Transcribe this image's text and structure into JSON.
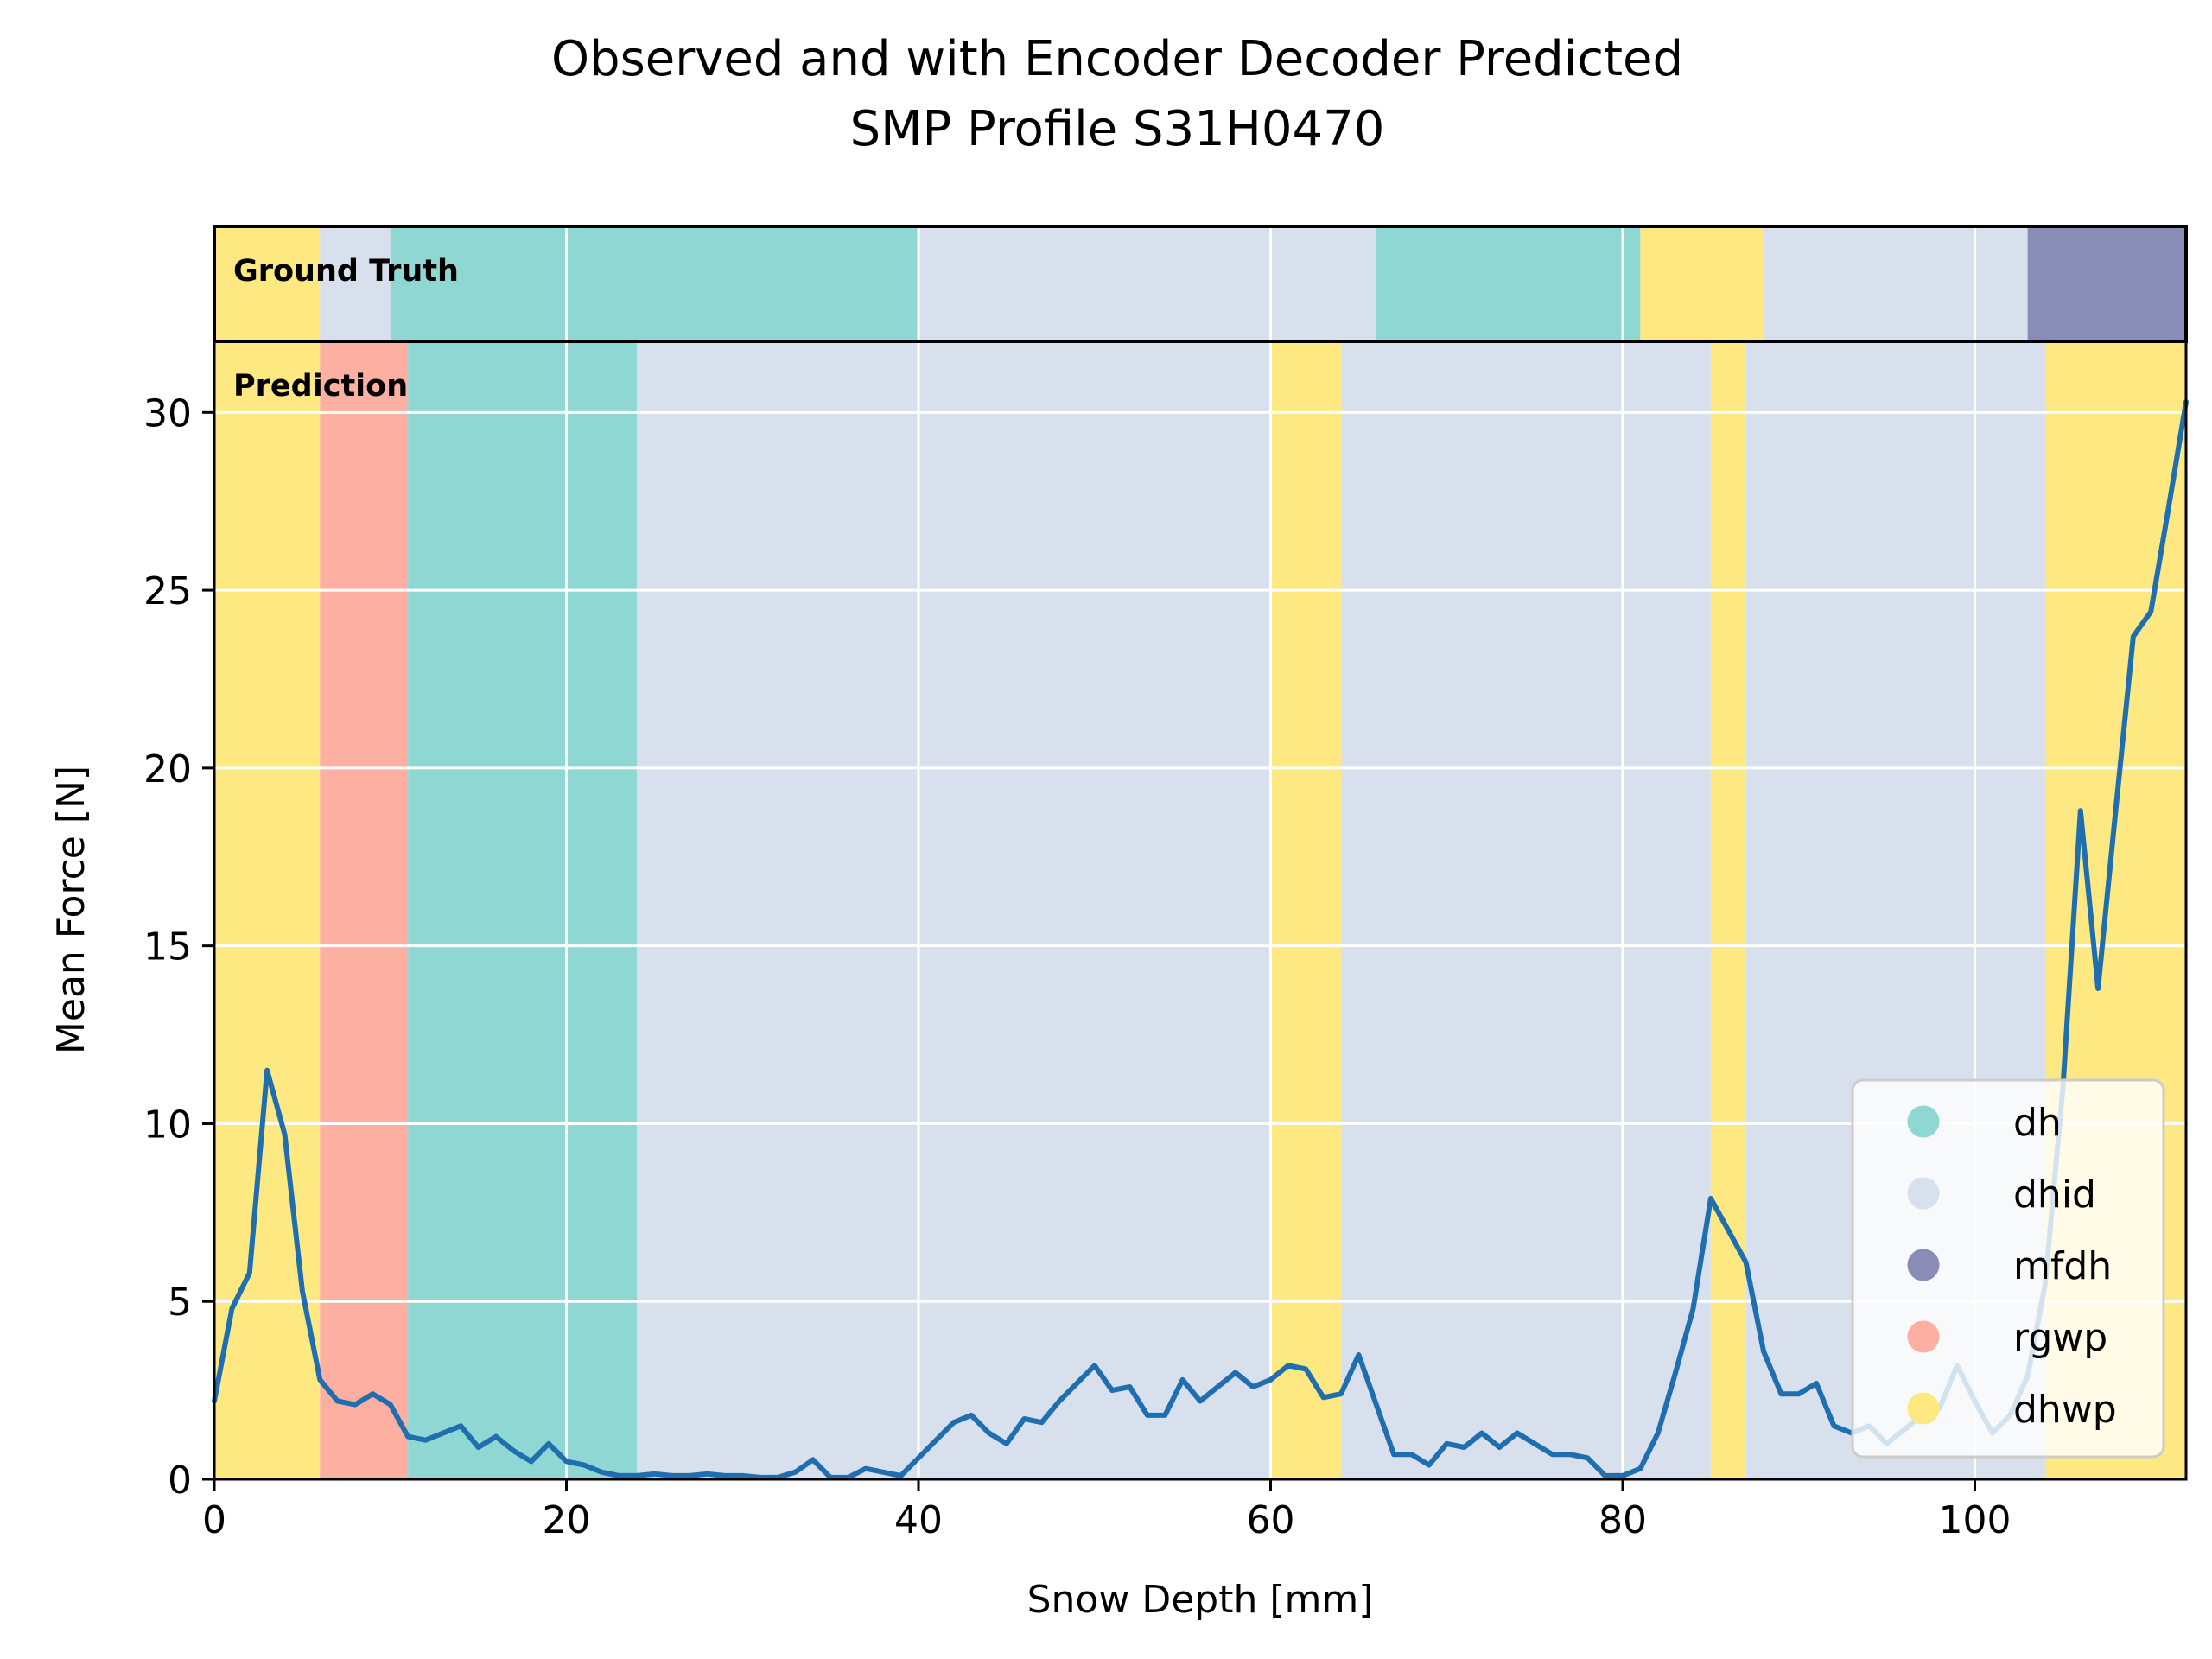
{
  "chart_data": {
    "type": "line",
    "title": "Observed and with Encoder Decoder Predicted",
    "subtitle": "SMP Profile S31H0470",
    "xlabel": "Snow Depth [mm]",
    "ylabel": "Mean Force [N]",
    "xlim": [
      0,
      112
    ],
    "ylim": [
      0,
      32
    ],
    "xticks": [
      0,
      20,
      40,
      60,
      80,
      100
    ],
    "yticks": [
      0,
      5,
      10,
      15,
      20,
      25,
      30
    ],
    "grid": true,
    "legend_position": "lower-right",
    "panel_labels": {
      "ground_truth": "Ground Truth",
      "prediction": "Prediction"
    },
    "classes": [
      {
        "name": "dh",
        "color": "#8fd7d3"
      },
      {
        "name": "dhid",
        "color": "#d7e0ec"
      },
      {
        "name": "mfdh",
        "color": "#8a8cb8"
      },
      {
        "name": "rgwp",
        "color": "#fdb0a2"
      },
      {
        "name": "dhwp",
        "color": "#fde881"
      }
    ],
    "ground_truth_segments": [
      {
        "class": "dhwp",
        "from": 0,
        "to": 6
      },
      {
        "class": "dhid",
        "from": 6,
        "to": 10
      },
      {
        "class": "dh",
        "from": 10,
        "to": 40
      },
      {
        "class": "dhid",
        "from": 40,
        "to": 66
      },
      {
        "class": "dh",
        "from": 66,
        "to": 81
      },
      {
        "class": "dhwp",
        "from": 81,
        "to": 88
      },
      {
        "class": "dhid",
        "from": 88,
        "to": 103
      },
      {
        "class": "mfdh",
        "from": 103,
        "to": 112
      }
    ],
    "prediction_segments": [
      {
        "class": "dhwp",
        "from": 0,
        "to": 6
      },
      {
        "class": "rgwp",
        "from": 6,
        "to": 11
      },
      {
        "class": "dh",
        "from": 11,
        "to": 24
      },
      {
        "class": "dhid",
        "from": 24,
        "to": 60
      },
      {
        "class": "dhwp",
        "from": 60,
        "to": 64
      },
      {
        "class": "dhid",
        "from": 64,
        "to": 85
      },
      {
        "class": "dhwp",
        "from": 85,
        "to": 87
      },
      {
        "class": "dhid",
        "from": 87,
        "to": 104
      },
      {
        "class": "dhwp",
        "from": 104,
        "to": 112
      }
    ],
    "line_color": "#1f6fb0",
    "series": [
      {
        "x": [
          0,
          1,
          2,
          3,
          4,
          5,
          6,
          7,
          8,
          9,
          10,
          11,
          12,
          13,
          14,
          15,
          16,
          17,
          18,
          19,
          20,
          21,
          22,
          23,
          24,
          25,
          26,
          27,
          28,
          29,
          30,
          31,
          32,
          33,
          34,
          35,
          36,
          37,
          38,
          39,
          40,
          41,
          42,
          43,
          44,
          45,
          46,
          47,
          48,
          49,
          50,
          51,
          52,
          53,
          54,
          55,
          56,
          57,
          58,
          59,
          60,
          61,
          62,
          63,
          64,
          65,
          66,
          67,
          68,
          69,
          70,
          71,
          72,
          73,
          74,
          75,
          76,
          77,
          78,
          79,
          80,
          81,
          82,
          83,
          84,
          85,
          86,
          87,
          88,
          89,
          90,
          91,
          92,
          93,
          94,
          95,
          96,
          97,
          98,
          99,
          100,
          101,
          102,
          103,
          104,
          105,
          106,
          107,
          108,
          109,
          110,
          111,
          112
        ],
        "values": [
          2.2,
          4.8,
          5.8,
          11.5,
          9.7,
          5.3,
          2.8,
          2.2,
          2.1,
          2.4,
          2.1,
          1.2,
          1.1,
          1.3,
          1.5,
          0.9,
          1.2,
          0.8,
          0.5,
          1.0,
          0.5,
          0.4,
          0.2,
          0.1,
          0.1,
          0.15,
          0.1,
          0.1,
          0.15,
          0.1,
          0.1,
          0.05,
          0.05,
          0.2,
          0.55,
          0.05,
          0.05,
          0.3,
          0.2,
          0.1,
          0.6,
          1.1,
          1.6,
          1.8,
          1.3,
          1.0,
          1.7,
          1.6,
          2.2,
          2.7,
          3.2,
          2.5,
          2.6,
          1.8,
          1.8,
          2.8,
          2.2,
          2.6,
          3.0,
          2.6,
          2.8,
          3.2,
          3.1,
          2.3,
          2.4,
          3.5,
          2.1,
          0.7,
          0.7,
          0.4,
          1.0,
          0.9,
          1.3,
          0.9,
          1.3,
          1.0,
          0.7,
          0.7,
          0.6,
          0.1,
          0.1,
          0.3,
          1.3,
          3.0,
          4.8,
          7.9,
          7.0,
          6.1,
          3.6,
          2.4,
          2.4,
          2.7,
          1.5,
          1.3,
          1.5,
          1.0,
          1.4,
          1.8,
          2.0,
          3.2,
          2.2,
          1.3,
          1.8,
          2.9,
          5.5,
          11.0,
          18.8,
          13.8,
          18.8,
          23.7,
          24.4,
          27.3,
          30.3
        ]
      }
    ]
  }
}
